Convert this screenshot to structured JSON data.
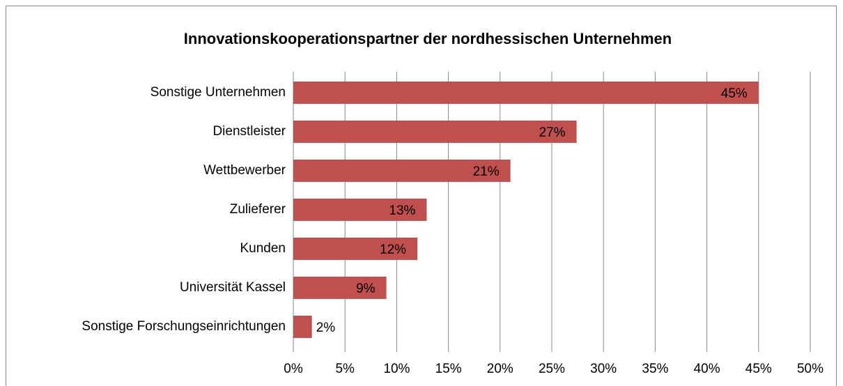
{
  "chart_data": {
    "type": "bar",
    "orientation": "horizontal",
    "title": "Innovationskooperationspartner der nordhessischen Unternehmen",
    "categories": [
      "Sonstige Unternehmen",
      "Dienstleister",
      "Wettbewerber",
      "Zulieferer",
      "Kunden",
      "Universität Kassel",
      "Sonstige Forschungseinrichtungen"
    ],
    "values": [
      45,
      27.4,
      21,
      12.9,
      12,
      9,
      1.8
    ],
    "value_labels": [
      "45%",
      "27%",
      "21%",
      "13%",
      "12%",
      "9%",
      "2%"
    ],
    "color": "#c0504d",
    "xlim": [
      0,
      50
    ],
    "xticks": [
      {
        "value": 0,
        "label": "0%"
      },
      {
        "value": 5,
        "label": "5%"
      },
      {
        "value": 10,
        "label": "10%"
      },
      {
        "value": 15,
        "label": "15%"
      },
      {
        "value": 20,
        "label": "20%"
      },
      {
        "value": 25,
        "label": "25%"
      },
      {
        "value": 30,
        "label": "30%"
      },
      {
        "value": 35,
        "label": "35%"
      },
      {
        "value": 40,
        "label": "40%"
      },
      {
        "value": 45,
        "label": "45%"
      },
      {
        "value": 50,
        "label": "50%"
      }
    ],
    "grid": true
  }
}
